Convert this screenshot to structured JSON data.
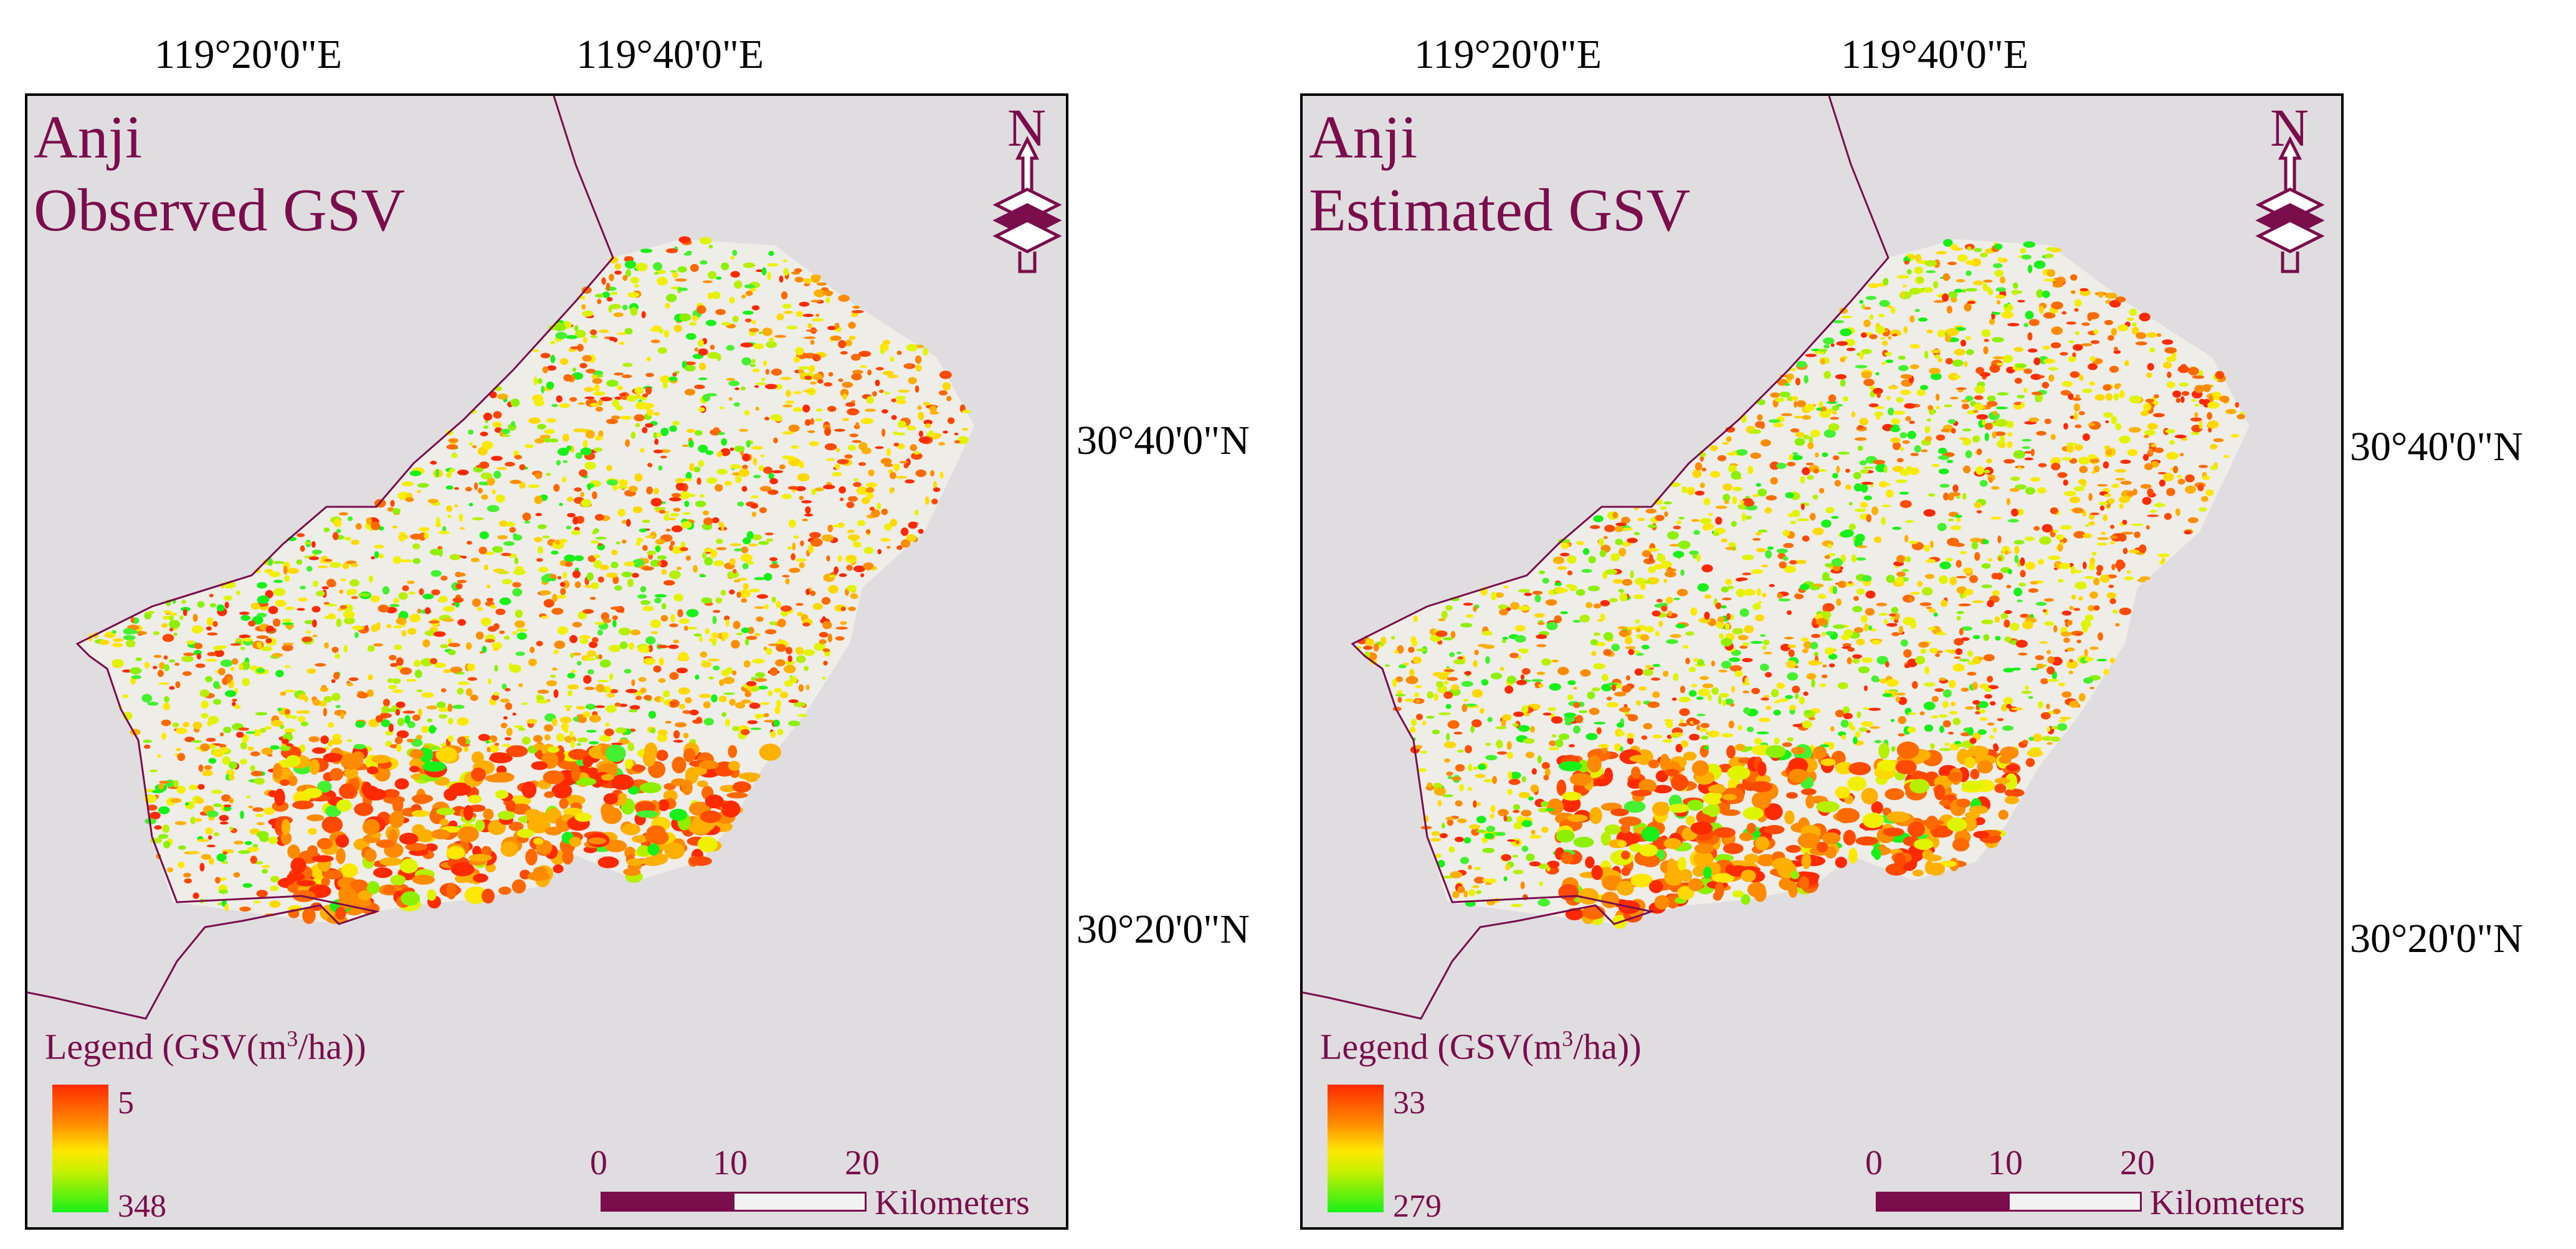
{
  "coordinates": {
    "lon_labels": [
      "119°20'0\"E",
      "119°40'0\"E"
    ],
    "lat_labels": [
      "30°40'0\"N",
      "30°20'0\"N"
    ]
  },
  "maps": [
    {
      "title_line1": "Anji",
      "title_line2": "Observed GSV",
      "legend_title_prefix": "Legend (GSV(m",
      "legend_title_sup": "3",
      "legend_title_suffix": "/ha))",
      "legend_max": "5",
      "legend_min": "348"
    },
    {
      "title_line1": "Anji",
      "title_line2": "Estimated GSV",
      "legend_title_prefix": "Legend (GSV(m",
      "legend_title_sup": "3",
      "legend_title_suffix": "/ha))",
      "legend_max": "33",
      "legend_min": "279"
    }
  ],
  "scalebar": {
    "ticks": [
      "0",
      "10",
      "20"
    ],
    "unit": "Kilometers"
  },
  "north_arrow": {
    "letter": "N",
    "icon": "north-arrow-icon"
  },
  "colors": {
    "accent": "#7a0d4c",
    "map_background": "#dfdddf",
    "gsv_low": "#ff2a00",
    "gsv_mid": "#ffe800",
    "gsv_high": "#19f019"
  }
}
